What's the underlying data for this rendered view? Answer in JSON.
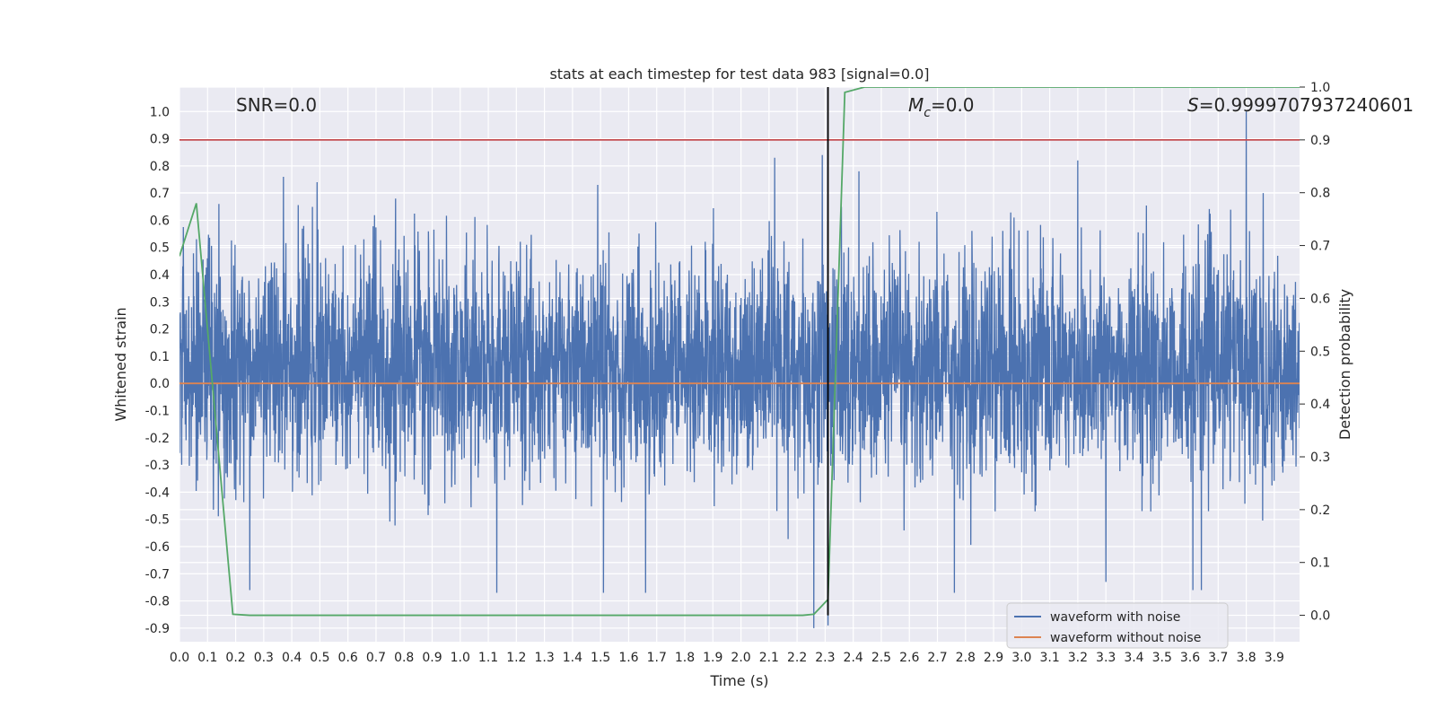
{
  "chart_data": {
    "type": "line",
    "title": "stats at each timestep for test data 983 [signal=0.0]",
    "xlabel": "Time (s)",
    "ylabel": "Whitened strain",
    "y2label": "Detection probability",
    "xlim": [
      0.0,
      3.99
    ],
    "ylim": [
      -0.95,
      1.09
    ],
    "y2lim": [
      -0.05,
      1.0
    ],
    "xticks": [
      "0.0",
      "0.1",
      "0.2",
      "0.3",
      "0.4",
      "0.5",
      "0.6",
      "0.7",
      "0.8",
      "0.9",
      "1.0",
      "1.1",
      "1.2",
      "1.3",
      "1.4",
      "1.5",
      "1.6",
      "1.7",
      "1.8",
      "1.9",
      "2.0",
      "2.1",
      "2.2",
      "2.3",
      "2.4",
      "2.5",
      "2.6",
      "2.7",
      "2.8",
      "2.9",
      "3.0",
      "3.1",
      "3.2",
      "3.3",
      "3.4",
      "3.5",
      "3.6",
      "3.7",
      "3.8",
      "3.9"
    ],
    "yticks": [
      "-0.9",
      "-0.8",
      "-0.7",
      "-0.6",
      "-0.5",
      "-0.4",
      "-0.3",
      "-0.2",
      "-0.1",
      "0.0",
      "0.1",
      "0.2",
      "0.3",
      "0.4",
      "0.5",
      "0.6",
      "0.7",
      "0.8",
      "0.9",
      "1.0"
    ],
    "y2ticks": [
      "0.0",
      "0.1",
      "0.2",
      "0.3",
      "0.4",
      "0.5",
      "0.6",
      "0.7",
      "0.8",
      "0.9",
      "1.0"
    ],
    "annotations": {
      "snr": "SNR=0.0",
      "mc_symbol": "M",
      "mc_sub": "c",
      "mc_value": "=0.0",
      "s_symbol": "S",
      "s_value": "=0.9999707937240601"
    },
    "series": [
      {
        "name": "waveform with noise",
        "color": "#4c72b0",
        "axis": "left",
        "kind": "noise",
        "samples": 4096,
        "peaks": [
          {
            "x": 0.14,
            "y": 0.66
          },
          {
            "x": 0.37,
            "y": 0.76
          },
          {
            "x": 0.49,
            "y": 0.74
          },
          {
            "x": 0.77,
            "y": 0.68
          },
          {
            "x": 1.49,
            "y": 0.73
          },
          {
            "x": 2.12,
            "y": 0.83
          },
          {
            "x": 2.29,
            "y": 0.84
          },
          {
            "x": 2.42,
            "y": 0.78
          },
          {
            "x": 3.2,
            "y": 0.82
          },
          {
            "x": 3.8,
            "y": 1.0
          },
          {
            "x": 3.86,
            "y": 0.7
          },
          {
            "x": 0.25,
            "y": -0.76
          },
          {
            "x": 1.13,
            "y": -0.77
          },
          {
            "x": 1.51,
            "y": -0.77
          },
          {
            "x": 1.66,
            "y": -0.77
          },
          {
            "x": 2.26,
            "y": -0.9
          },
          {
            "x": 2.31,
            "y": -0.89
          },
          {
            "x": 2.76,
            "y": -0.77
          },
          {
            "x": 3.61,
            "y": -0.76
          },
          {
            "x": 3.64,
            "y": -0.76
          },
          {
            "x": 3.3,
            "y": -0.73
          }
        ]
      },
      {
        "name": "waveform without noise",
        "color": "#dd8452",
        "axis": "left",
        "kind": "line",
        "x": [
          0.0,
          3.99
        ],
        "y": [
          0.0,
          0.0
        ]
      },
      {
        "name": "",
        "color": "#55a868",
        "axis": "right",
        "kind": "line",
        "x": [
          0.0,
          0.06,
          0.19,
          0.25,
          2.22,
          2.26,
          2.31,
          2.37,
          2.44,
          3.99
        ],
        "y": [
          0.68,
          0.78,
          0.002,
          0.0,
          0.0,
          0.002,
          0.03,
          0.99,
          1.0,
          1.0
        ]
      }
    ],
    "threshold": {
      "axis": "right",
      "value": 0.9,
      "color": "#c44e52"
    },
    "vline": {
      "x": 2.31,
      "y2_from": 0.0,
      "y2_to": 1.0,
      "color": "#000000"
    },
    "colors": {
      "background": "#eaeaf2",
      "grid": "#ffffff"
    },
    "grid": true,
    "legend_position": "lower right"
  }
}
